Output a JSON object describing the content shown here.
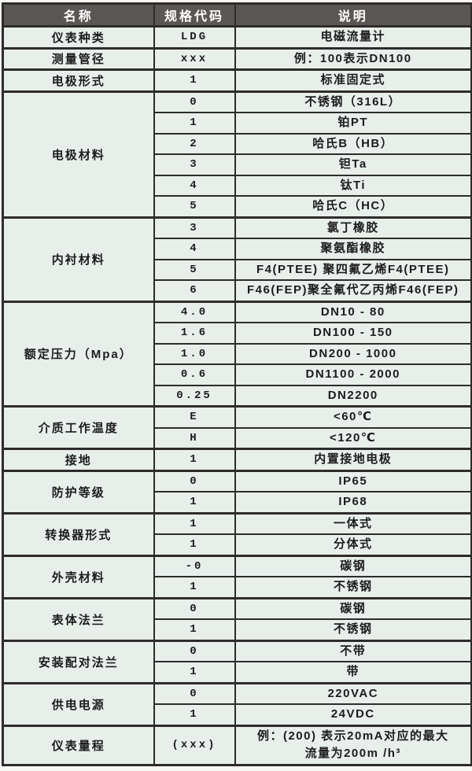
{
  "colors": {
    "header_bg": "#5b5755",
    "header_text": "#ffffff",
    "cell_bg": "#e8efeb",
    "border": "#2e2c2b",
    "text": "#1c1c1c"
  },
  "table": {
    "headers": [
      "名称",
      "规格代码",
      "说明"
    ],
    "groups": [
      {
        "name": "仪表种类",
        "rows": [
          {
            "code": "LDG",
            "desc": "电磁流量计"
          }
        ]
      },
      {
        "name": "测量管径",
        "rows": [
          {
            "code": "xxx",
            "desc": "例：100表示DN100"
          }
        ]
      },
      {
        "name": "电极形式",
        "rows": [
          {
            "code": "1",
            "desc": "标准固定式"
          }
        ]
      },
      {
        "name": "电极材料",
        "rows": [
          {
            "code": "0",
            "desc": "不锈钢（316L）"
          },
          {
            "code": "1",
            "desc": "铂PT"
          },
          {
            "code": "2",
            "desc": "哈氏B（HB）"
          },
          {
            "code": "3",
            "desc": "钽Ta"
          },
          {
            "code": "4",
            "desc": "钛Ti"
          },
          {
            "code": "5",
            "desc": "哈氏C（HC）"
          }
        ]
      },
      {
        "name": "内衬材料",
        "rows": [
          {
            "code": "3",
            "desc": "氯丁橡胶"
          },
          {
            "code": "4",
            "desc": "聚氨酯橡胶"
          },
          {
            "code": "5",
            "desc": "F4(PTEE) 聚四氟乙烯F4(PTEE)"
          },
          {
            "code": "6",
            "desc": "F46(FEP)聚全氟代乙丙烯F46(FEP)"
          }
        ]
      },
      {
        "name": "额定压力（Mpa）",
        "rows": [
          {
            "code": "4.0",
            "desc": "DN10 - 80"
          },
          {
            "code": "1.6",
            "desc": "DN100 - 150"
          },
          {
            "code": "1.0",
            "desc": "DN200 - 1000"
          },
          {
            "code": "0.6",
            "desc": "DN1100 - 2000"
          },
          {
            "code": "0.25",
            "desc": "DN2200"
          }
        ]
      },
      {
        "name": "介质工作温度",
        "rows": [
          {
            "code": "E",
            "desc": "<60℃"
          },
          {
            "code": "H",
            "desc": "<120℃"
          }
        ]
      },
      {
        "name": "接地",
        "rows": [
          {
            "code": "1",
            "desc": "内置接地电极"
          }
        ]
      },
      {
        "name": "防护等级",
        "rows": [
          {
            "code": "0",
            "desc": "IP65"
          },
          {
            "code": "1",
            "desc": "IP68"
          }
        ]
      },
      {
        "name": "转换器形式",
        "rows": [
          {
            "code": "1",
            "desc": "一体式"
          },
          {
            "code": "1",
            "desc": "分体式"
          }
        ]
      },
      {
        "name": "外壳材料",
        "rows": [
          {
            "code": "-0",
            "desc": "碳钢"
          },
          {
            "code": "1",
            "desc": "不锈钢"
          }
        ]
      },
      {
        "name": "表体法兰",
        "rows": [
          {
            "code": "0",
            "desc": "碳钢"
          },
          {
            "code": "1",
            "desc": "不锈钢"
          }
        ]
      },
      {
        "name": "安装配对法兰",
        "rows": [
          {
            "code": "0",
            "desc": "不带"
          },
          {
            "code": "1",
            "desc": "带"
          }
        ]
      },
      {
        "name": "供电电源",
        "rows": [
          {
            "code": "0",
            "desc": "220VAC"
          },
          {
            "code": "1",
            "desc": "24VDC"
          }
        ]
      },
      {
        "name": "仪表量程",
        "rows": [
          {
            "code": "(xxx)",
            "desc": "例：(200) 表示20mA对应的最大\n流量为200m /h³"
          }
        ]
      }
    ]
  }
}
